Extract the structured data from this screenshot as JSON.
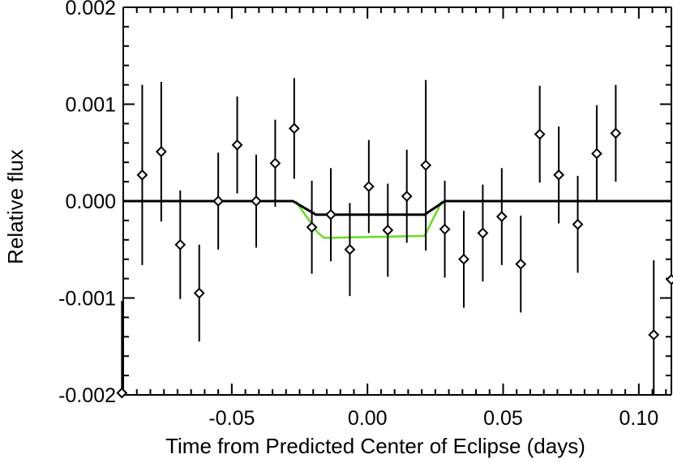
{
  "chart_data": {
    "type": "scatter",
    "title": "",
    "xlabel": "Time from Predicted Center of Eclipse (days)",
    "ylabel": "Relative flux",
    "xlim": [
      -0.09,
      0.112
    ],
    "ylim": [
      -0.002,
      0.002
    ],
    "grid": false,
    "legend": "none",
    "x_ticks": [
      {
        "value": -0.05,
        "label": "-0.05"
      },
      {
        "value": 0.0,
        "label": "0.00"
      },
      {
        "value": 0.05,
        "label": "0.05"
      },
      {
        "value": 0.1,
        "label": "0.10"
      }
    ],
    "y_ticks": [
      {
        "value": 0.002,
        "label": "0.002"
      },
      {
        "value": 0.001,
        "label": "0.001"
      },
      {
        "value": 0.0,
        "label": "0.000"
      },
      {
        "value": -0.001,
        "label": "-0.001"
      },
      {
        "value": -0.002,
        "label": "-0.002"
      }
    ],
    "points": [
      {
        "x": -0.0905,
        "y": -0.00198,
        "err": 0.00095
      },
      {
        "x": -0.083,
        "y": 0.00027,
        "err": 0.00093
      },
      {
        "x": -0.076,
        "y": 0.00051,
        "err": 0.00072
      },
      {
        "x": -0.069,
        "y": -0.00045,
        "err": 0.00056
      },
      {
        "x": -0.062,
        "y": -0.00095,
        "err": 0.0005
      },
      {
        "x": -0.055,
        "y": 0.0,
        "err": 0.0005
      },
      {
        "x": -0.048,
        "y": 0.00058,
        "err": 0.0005
      },
      {
        "x": -0.041,
        "y": 0.0,
        "err": 0.00048
      },
      {
        "x": -0.034,
        "y": 0.00039,
        "err": 0.00045
      },
      {
        "x": -0.027,
        "y": 0.00075,
        "err": 0.00052
      },
      {
        "x": -0.0205,
        "y": -0.00027,
        "err": 0.00048
      },
      {
        "x": -0.0135,
        "y": -0.00014,
        "err": 0.00048
      },
      {
        "x": -0.0065,
        "y": -0.0005,
        "err": 0.00048
      },
      {
        "x": 0.0005,
        "y": 0.00015,
        "err": 0.00048
      },
      {
        "x": 0.0075,
        "y": -0.0003,
        "err": 0.00048
      },
      {
        "x": 0.0145,
        "y": 5e-05,
        "err": 0.00048
      },
      {
        "x": 0.0215,
        "y": 0.00037,
        "err": 0.00088
      },
      {
        "x": 0.0285,
        "y": -0.00029,
        "err": 0.0005
      },
      {
        "x": 0.0355,
        "y": -0.0006,
        "err": 0.0005
      },
      {
        "x": 0.0425,
        "y": -0.00033,
        "err": 0.0005
      },
      {
        "x": 0.0495,
        "y": -0.00016,
        "err": 0.0005
      },
      {
        "x": 0.0565,
        "y": -0.00065,
        "err": 0.0005
      },
      {
        "x": 0.0635,
        "y": 0.00069,
        "err": 0.0005
      },
      {
        "x": 0.0705,
        "y": 0.00027,
        "err": 0.0005
      },
      {
        "x": 0.0775,
        "y": -0.00024,
        "err": 0.0005
      },
      {
        "x": 0.0845,
        "y": 0.00049,
        "err": 0.0005
      },
      {
        "x": 0.0915,
        "y": 0.0007,
        "err": 0.0005
      },
      {
        "x": 0.1055,
        "y": -0.00138,
        "err": 0.00077
      },
      {
        "x": 0.112,
        "y": -0.00081,
        "err": 0.0009
      }
    ],
    "series": [
      {
        "color": "#000000",
        "x": [
          -0.09,
          -0.0275,
          -0.019,
          0.021,
          0.0285,
          0.112
        ],
        "y": [
          0.0,
          0.0,
          -0.00014,
          -0.00014,
          0.0,
          0.0
        ]
      },
      {
        "color": "#66dd22",
        "x": [
          -0.0265,
          -0.0185,
          -0.016,
          0.021,
          0.0275
        ],
        "y": [
          0.0,
          -0.00032,
          -0.00038,
          -0.00036,
          0.0
        ]
      }
    ]
  }
}
